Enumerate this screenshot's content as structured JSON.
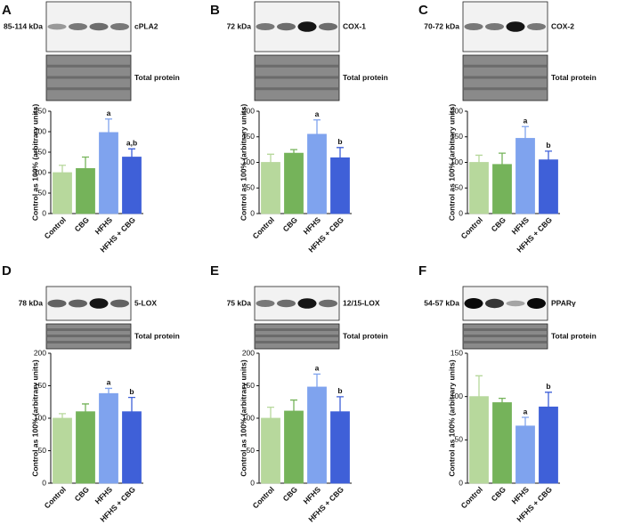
{
  "chart_data": [
    {
      "type": "bar",
      "panel": "A",
      "blot_label": "85-114 kDa",
      "protein": "cPLA2",
      "loading_label": "Total protein",
      "ylabel": "Control as 100% (arbitrary units)",
      "categories": [
        "Control",
        "CBG",
        "HFHS",
        "HFHS + CBG"
      ],
      "values": [
        100,
        110,
        198,
        138
      ],
      "errors": [
        18,
        28,
        33,
        20
      ],
      "bar_labels": [
        null,
        null,
        "a",
        "a,b"
      ],
      "colors": [
        "#b7d89c",
        "#75b35a",
        "#7fa3ee",
        "#3f60d8"
      ],
      "ylim": [
        0,
        250
      ],
      "yticks": [
        0,
        50,
        100,
        150,
        200,
        250
      ]
    },
    {
      "type": "bar",
      "panel": "B",
      "blot_label": "72 kDa",
      "protein": "COX-1",
      "loading_label": "Total protein",
      "ylabel": "Control as 100% (arbitrary units)",
      "categories": [
        "Control",
        "CBG",
        "HFHS",
        "HFHS + CBG"
      ],
      "values": [
        100,
        118,
        155,
        109
      ],
      "errors": [
        16,
        7,
        28,
        20
      ],
      "bar_labels": [
        null,
        null,
        "a",
        "b"
      ],
      "colors": [
        "#b7d89c",
        "#75b35a",
        "#7fa3ee",
        "#3f60d8"
      ],
      "ylim": [
        0,
        200
      ],
      "yticks": [
        0,
        50,
        100,
        150,
        200
      ]
    },
    {
      "type": "bar",
      "panel": "C",
      "blot_label": "70-72 kDa",
      "protein": "COX-2",
      "loading_label": "Total protein",
      "ylabel": "Control as 100% (arbitrary units)",
      "categories": [
        "Control",
        "CBG",
        "HFHS",
        "HFHS + CBG"
      ],
      "values": [
        100,
        96,
        147,
        105
      ],
      "errors": [
        14,
        22,
        23,
        17
      ],
      "bar_labels": [
        null,
        null,
        "a",
        "b"
      ],
      "colors": [
        "#b7d89c",
        "#75b35a",
        "#7fa3ee",
        "#3f60d8"
      ],
      "ylim": [
        0,
        200
      ],
      "yticks": [
        0,
        50,
        100,
        150,
        200
      ]
    },
    {
      "type": "bar",
      "panel": "D",
      "blot_label": "78 kDa",
      "protein": "5-LOX",
      "loading_label": "Total protein",
      "ylabel": "Control as 100% (arbitrary units)",
      "categories": [
        "Control",
        "CBG",
        "HFHS",
        "HFHS + CBG"
      ],
      "values": [
        100,
        110,
        138,
        110
      ],
      "errors": [
        7,
        12,
        8,
        22
      ],
      "bar_labels": [
        null,
        null,
        "a",
        "b"
      ],
      "colors": [
        "#b7d89c",
        "#75b35a",
        "#7fa3ee",
        "#3f60d8"
      ],
      "ylim": [
        0,
        200
      ],
      "yticks": [
        0,
        50,
        100,
        150,
        200
      ]
    },
    {
      "type": "bar",
      "panel": "E",
      "blot_label": "75 kDa",
      "protein": "12/15-LOX",
      "loading_label": "Total protein",
      "ylabel": "Control as 100% (arbitrary units)",
      "categories": [
        "Control",
        "CBG",
        "HFHS",
        "HFHS + CBG"
      ],
      "values": [
        100,
        111,
        148,
        110
      ],
      "errors": [
        17,
        17,
        20,
        23
      ],
      "bar_labels": [
        null,
        null,
        "a",
        "b"
      ],
      "colors": [
        "#b7d89c",
        "#75b35a",
        "#7fa3ee",
        "#3f60d8"
      ],
      "ylim": [
        0,
        200
      ],
      "yticks": [
        0,
        50,
        100,
        150,
        200
      ]
    },
    {
      "type": "bar",
      "panel": "F",
      "blot_label": "54-57 kDa",
      "protein": "PPARγ",
      "loading_label": "Total protein",
      "ylabel": "Control as 100% (arbitrary units)",
      "categories": [
        "Control",
        "CBG",
        "HFHS",
        "HFHS + CBG"
      ],
      "values": [
        100,
        93,
        66,
        88
      ],
      "errors": [
        24,
        5,
        10,
        17
      ],
      "bar_labels": [
        null,
        null,
        "a",
        "b"
      ],
      "colors": [
        "#b7d89c",
        "#75b35a",
        "#7fa3ee",
        "#3f60d8"
      ],
      "ylim": [
        0,
        150
      ],
      "yticks": [
        0,
        50,
        100,
        150
      ]
    }
  ]
}
